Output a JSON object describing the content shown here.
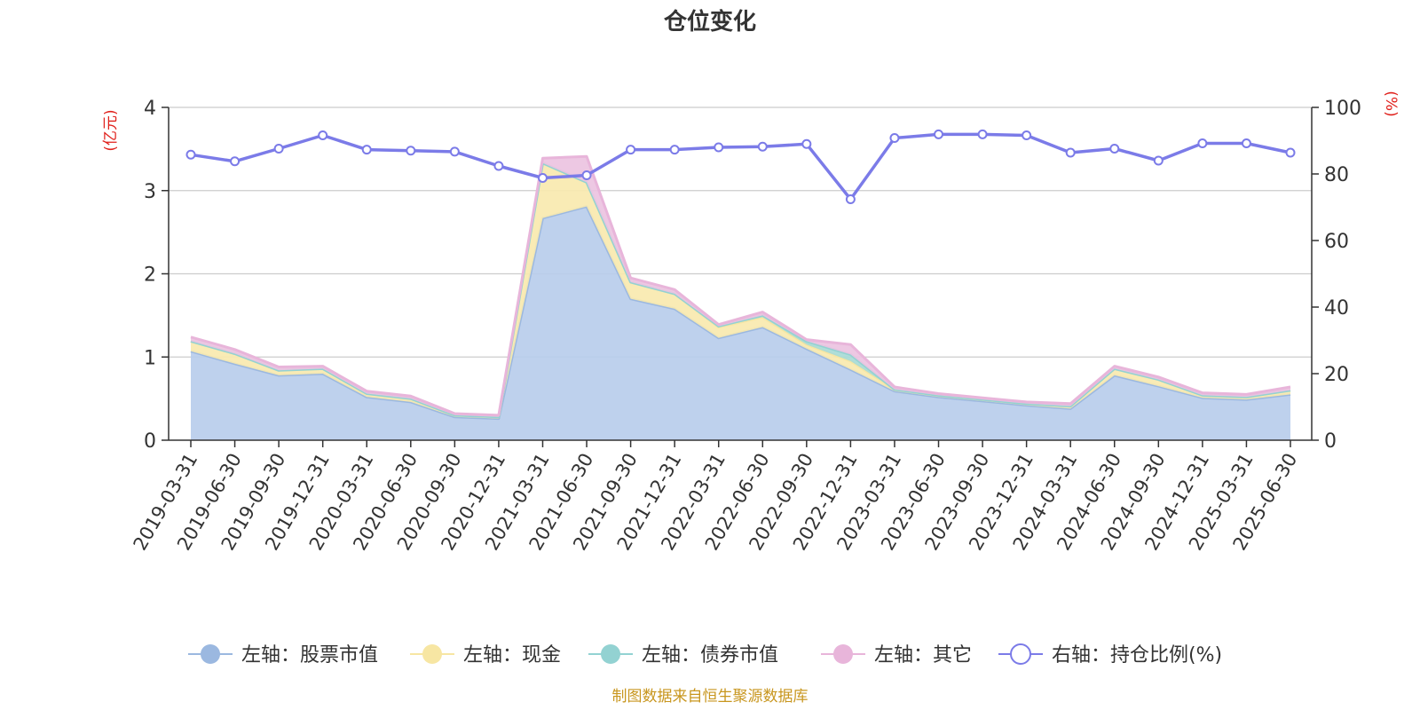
{
  "chart_data": {
    "type": "area",
    "title": "仓位变化",
    "left_axis_unit": "(亿元)",
    "right_axis_unit": "(%)",
    "left_ylim": [
      0,
      4
    ],
    "left_yticks": [
      "0",
      "1",
      "2",
      "3",
      "4"
    ],
    "right_ylim": [
      0,
      100
    ],
    "right_yticks": [
      "0",
      "20",
      "40",
      "60",
      "80",
      "100"
    ],
    "grid": true,
    "legend_position": "bottom",
    "source_note": "制图数据来自恒生聚源数据库",
    "categories": [
      "2019-03-31",
      "2019-06-30",
      "2019-09-30",
      "2019-12-31",
      "2020-03-31",
      "2020-06-30",
      "2020-09-30",
      "2020-12-31",
      "2021-03-31",
      "2021-06-30",
      "2021-09-30",
      "2021-12-31",
      "2022-03-31",
      "2022-06-30",
      "2022-09-30",
      "2022-12-31",
      "2023-03-31",
      "2023-06-30",
      "2023-09-30",
      "2023-12-31",
      "2024-03-31",
      "2024-06-30",
      "2024-09-30",
      "2024-12-31",
      "2025-03-31",
      "2025-06-30"
    ],
    "series": [
      {
        "name": "左轴：股票市值",
        "axis": "left",
        "color": "#9bb8e0",
        "fill": "#b8cdeb",
        "values": [
          1.07,
          0.92,
          0.78,
          0.8,
          0.52,
          0.46,
          0.28,
          0.26,
          2.67,
          2.81,
          1.7,
          1.58,
          1.23,
          1.36,
          1.1,
          0.85,
          0.59,
          0.52,
          0.47,
          0.42,
          0.38,
          0.78,
          0.65,
          0.51,
          0.49,
          0.55
        ]
      },
      {
        "name": "左轴：现金",
        "axis": "left",
        "color": "#f7e6a3",
        "fill": "#f8e9af",
        "values": [
          0.12,
          0.12,
          0.06,
          0.06,
          0.04,
          0.04,
          0.02,
          0.02,
          0.66,
          0.29,
          0.2,
          0.18,
          0.13,
          0.12,
          0.05,
          0.1,
          0.02,
          0.02,
          0.02,
          0.02,
          0.03,
          0.08,
          0.08,
          0.03,
          0.03,
          0.05
        ]
      },
      {
        "name": "左轴：债券市值",
        "axis": "left",
        "color": "#93d2d2",
        "fill": "#a8dbd6",
        "values": [
          0.0,
          0.0,
          0.0,
          0.0,
          0.0,
          0.0,
          0.0,
          0.0,
          0.0,
          0.0,
          0.0,
          0.0,
          0.01,
          0.02,
          0.04,
          0.08,
          0.0,
          0.0,
          0.0,
          0.0,
          0.0,
          0.0,
          0.0,
          0.0,
          0.0,
          0.0
        ]
      },
      {
        "name": "左轴：其它",
        "axis": "left",
        "color": "#e8b5da",
        "fill": "#ecc3e1",
        "values": [
          0.05,
          0.05,
          0.04,
          0.03,
          0.03,
          0.03,
          0.02,
          0.02,
          0.06,
          0.31,
          0.05,
          0.05,
          0.02,
          0.04,
          0.02,
          0.12,
          0.03,
          0.02,
          0.02,
          0.02,
          0.03,
          0.03,
          0.03,
          0.03,
          0.03,
          0.04
        ]
      },
      {
        "name": "右轴：持仓比例(%)",
        "axis": "right",
        "color": "#7b7be8",
        "values": [
          85.8,
          83.8,
          87.6,
          91.6,
          87.3,
          87.0,
          86.7,
          82.4,
          78.8,
          79.6,
          87.3,
          87.3,
          88.0,
          88.2,
          89.0,
          72.4,
          90.8,
          91.9,
          91.9,
          91.6,
          86.4,
          87.6,
          84.0,
          89.2,
          89.2,
          86.4
        ]
      }
    ]
  }
}
